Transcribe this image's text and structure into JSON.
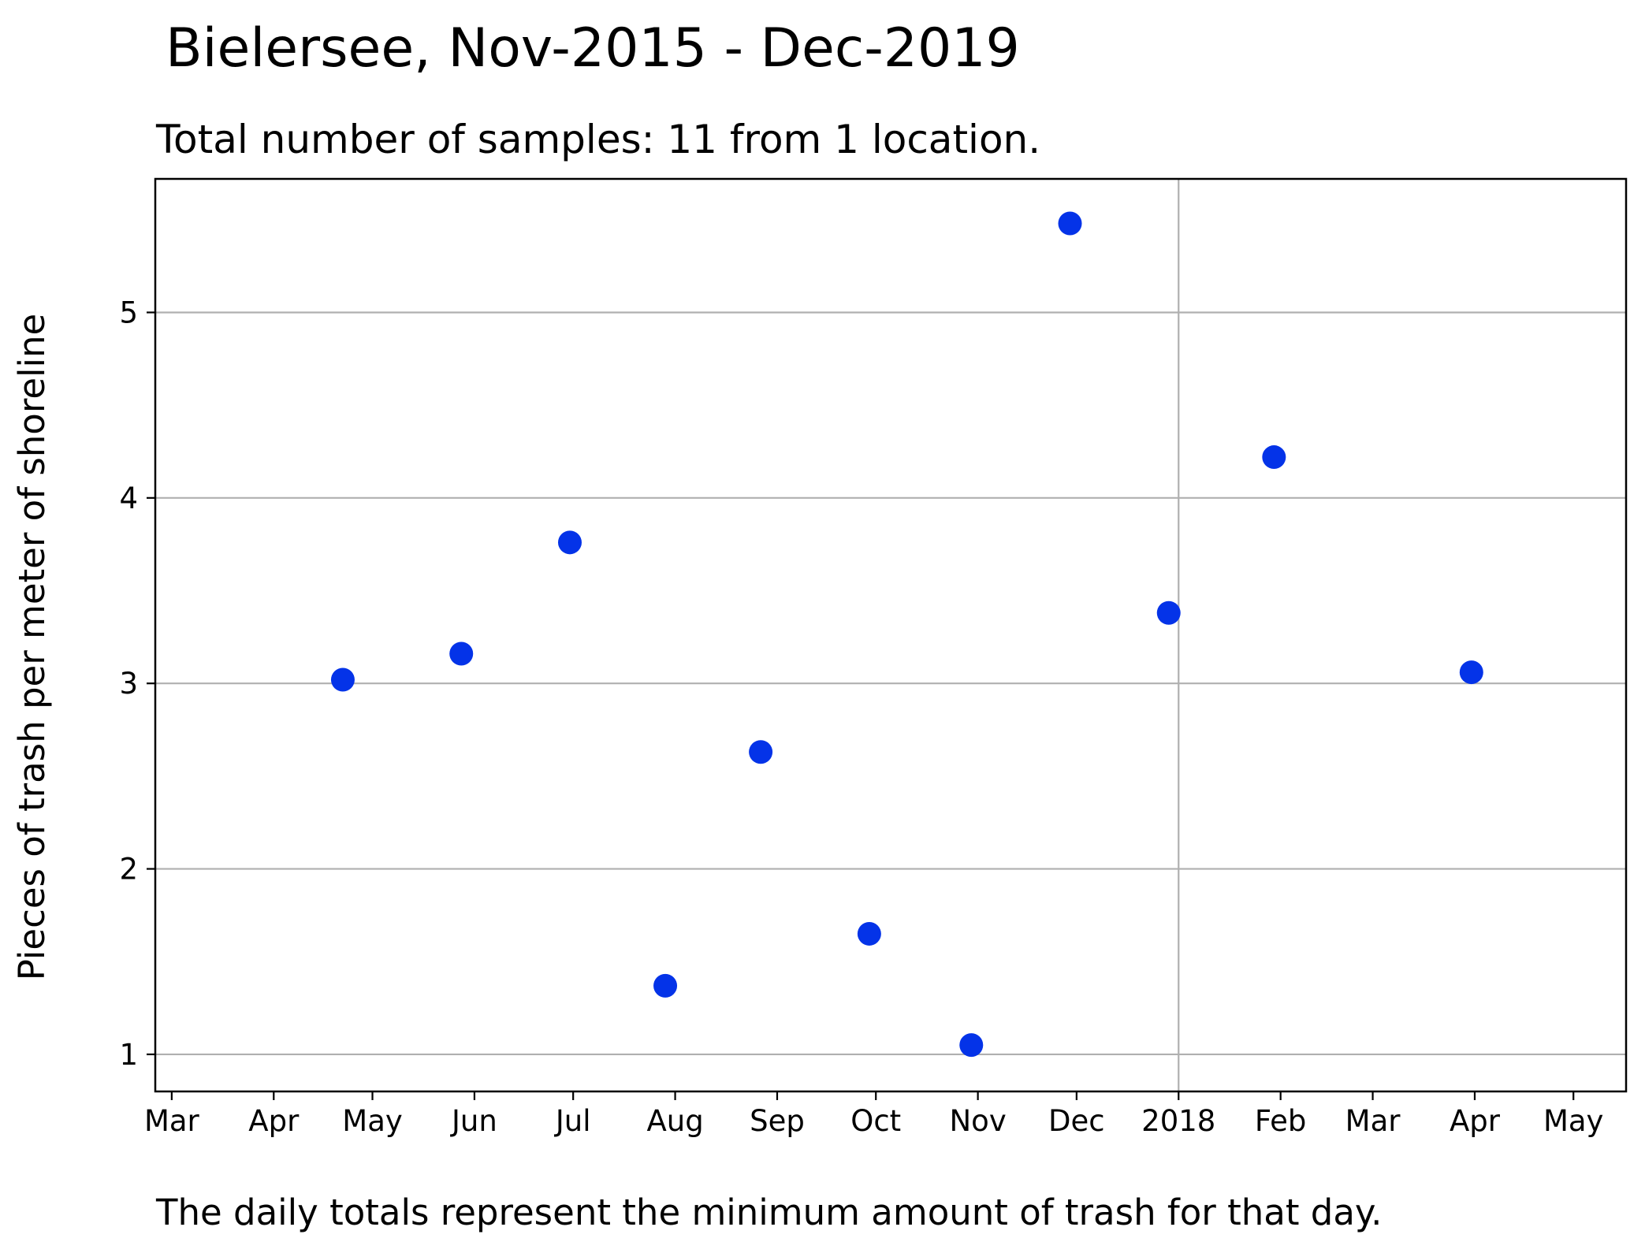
{
  "chart_data": {
    "type": "scatter",
    "title": "Bielersee, Nov-2015 - Dec-2019",
    "subtitle": "Total number of samples: 11 from 1 location.",
    "ylabel": "Pieces of trash per meter of shoreline",
    "footnote": "The daily totals represent the minimum amount of trash for that day.",
    "grid": true,
    "ylim": [
      0.8,
      5.72
    ],
    "y_ticks": [
      1,
      2,
      3,
      4,
      5
    ],
    "xlim": [
      "2017-02-24",
      "2018-05-17"
    ],
    "x_ticks": [
      {
        "date": "2017-03-01",
        "label": "Mar"
      },
      {
        "date": "2017-04-01",
        "label": "Apr"
      },
      {
        "date": "2017-05-01",
        "label": "May"
      },
      {
        "date": "2017-06-01",
        "label": "Jun"
      },
      {
        "date": "2017-07-01",
        "label": "Jul"
      },
      {
        "date": "2017-08-01",
        "label": "Aug"
      },
      {
        "date": "2017-09-01",
        "label": "Sep"
      },
      {
        "date": "2017-10-01",
        "label": "Oct"
      },
      {
        "date": "2017-11-01",
        "label": "Nov"
      },
      {
        "date": "2017-12-01",
        "label": "Dec"
      },
      {
        "date": "2018-01-01",
        "label": "2018"
      },
      {
        "date": "2018-02-01",
        "label": "Feb"
      },
      {
        "date": "2018-03-01",
        "label": "Mar"
      },
      {
        "date": "2018-04-01",
        "label": "Apr"
      },
      {
        "date": "2018-05-01",
        "label": "May"
      }
    ],
    "x_gridline_dates": [
      "2018-01-01"
    ],
    "points": [
      {
        "x": "2017-04-22",
        "y": 3.02
      },
      {
        "x": "2017-05-28",
        "y": 3.16
      },
      {
        "x": "2017-06-30",
        "y": 3.76
      },
      {
        "x": "2017-07-29",
        "y": 1.37
      },
      {
        "x": "2017-08-27",
        "y": 2.63
      },
      {
        "x": "2017-09-29",
        "y": 1.65
      },
      {
        "x": "2017-10-30",
        "y": 1.05
      },
      {
        "x": "2017-11-29",
        "y": 5.48
      },
      {
        "x": "2017-12-29",
        "y": 3.38
      },
      {
        "x": "2018-01-30",
        "y": 4.22
      },
      {
        "x": "2018-03-31",
        "y": 3.06
      }
    ],
    "colors": {
      "points": "#0433e8",
      "grid": "#b0b0b0",
      "axes": "#000000"
    }
  }
}
